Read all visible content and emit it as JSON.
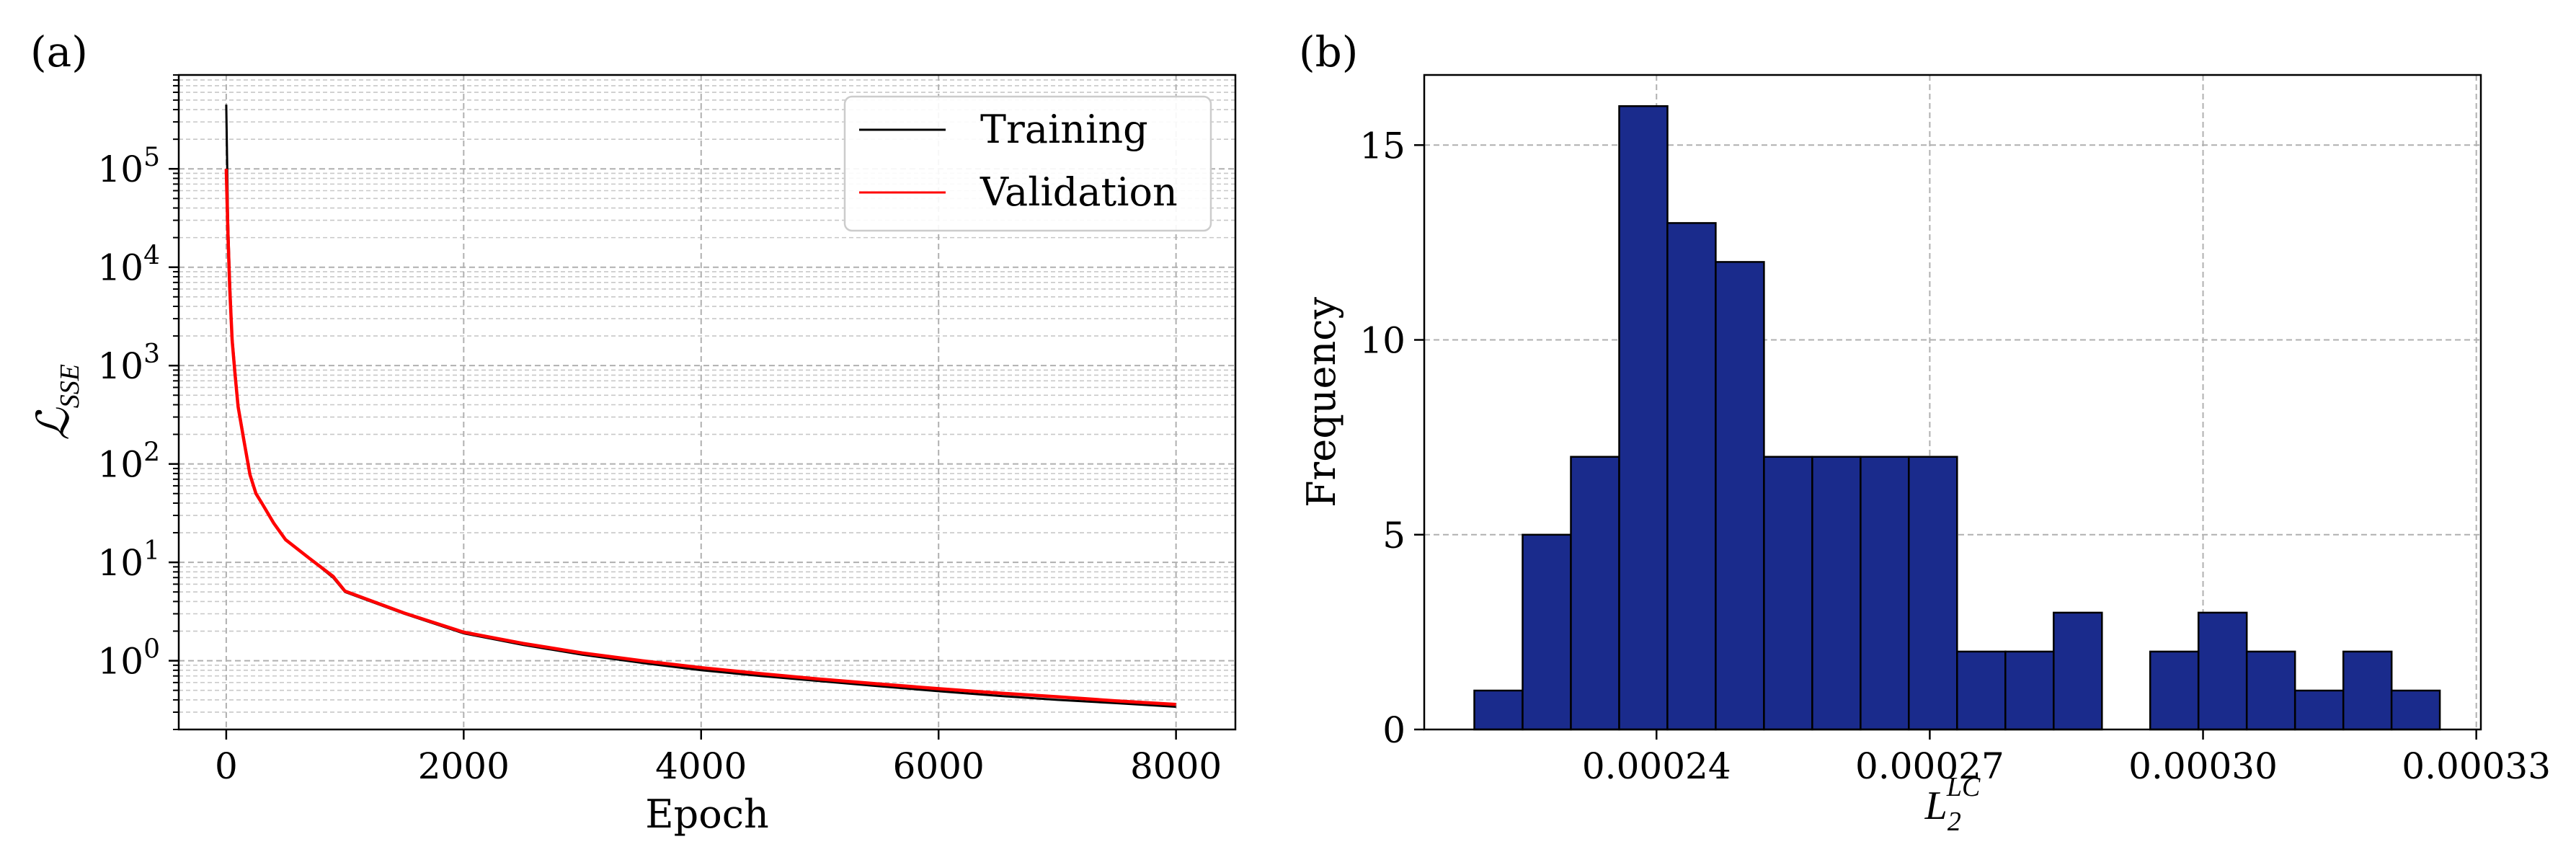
{
  "chart_data": [
    {
      "panel": "(a)",
      "type": "line",
      "xlabel": "Epoch",
      "ylabel": "ℒ",
      "ylabel_subscript": "SSE",
      "yscale": "log",
      "xlim": [
        -400,
        8500
      ],
      "ylim": [
        0.2,
        900000
      ],
      "grid": true,
      "xticks": [
        0,
        2000,
        4000,
        6000,
        8000
      ],
      "xtick_labels": [
        "0",
        "2000",
        "4000",
        "6000",
        "8000"
      ],
      "ytick_exponents": [
        0,
        1,
        2,
        3,
        4,
        5
      ],
      "ytick_base": "10",
      "legend_position": "top-right",
      "series": [
        {
          "name": "Training",
          "color": "#000000",
          "x": [
            0,
            15,
            30,
            50,
            75,
            100,
            150,
            200,
            250,
            300,
            400,
            500,
            700,
            900,
            1000,
            1500,
            2000,
            2500,
            3000,
            3500,
            4000,
            4500,
            5000,
            5500,
            6000,
            6500,
            7000,
            7500,
            8000
          ],
          "y": [
            450000,
            30000,
            8000,
            2000,
            900,
            400,
            180,
            80,
            50,
            40,
            25,
            17,
            11,
            7,
            5,
            3,
            1.9,
            1.45,
            1.15,
            0.95,
            0.8,
            0.7,
            0.62,
            0.55,
            0.49,
            0.44,
            0.4,
            0.37,
            0.34
          ]
        },
        {
          "name": "Validation",
          "color": "#ff0000",
          "x": [
            0,
            15,
            30,
            50,
            75,
            100,
            150,
            200,
            250,
            300,
            400,
            500,
            700,
            900,
            1000,
            1500,
            2000,
            2500,
            3000,
            3500,
            4000,
            4500,
            5000,
            5500,
            6000,
            6500,
            7000,
            7500,
            8000
          ],
          "y": [
            100000,
            20000,
            6000,
            1800,
            800,
            380,
            170,
            78,
            50,
            40,
            25,
            17,
            11,
            7.2,
            5.1,
            3.05,
            1.95,
            1.5,
            1.2,
            1.0,
            0.85,
            0.74,
            0.65,
            0.58,
            0.52,
            0.47,
            0.43,
            0.39,
            0.36
          ]
        }
      ]
    },
    {
      "panel": "(b)",
      "type": "bar",
      "xlabel": "L",
      "xlabel_subscript": "2",
      "xlabel_superscript": "LC",
      "ylabel": "Frequency",
      "xlim": [
        0.0002145,
        0.0003305
      ],
      "ylim": [
        0,
        16.8
      ],
      "grid": true,
      "xticks": [
        0.00024,
        0.00027,
        0.0003,
        0.00033
      ],
      "xtick_labels": [
        "0.00024",
        "0.00027",
        "0.00030",
        "0.00033"
      ],
      "yticks": [
        0,
        5,
        10,
        15
      ],
      "ytick_labels": [
        "0",
        "5",
        "10",
        "15"
      ],
      "bar_color": "#1a2b8c",
      "edge_color": "#000000",
      "bin_start": 0.00022,
      "bin_width": 5.3e-06,
      "values": [
        1,
        5,
        7,
        16,
        13,
        12,
        7,
        7,
        7,
        7,
        2,
        2,
        3,
        0,
        2,
        3,
        2,
        1,
        2,
        1
      ]
    }
  ]
}
